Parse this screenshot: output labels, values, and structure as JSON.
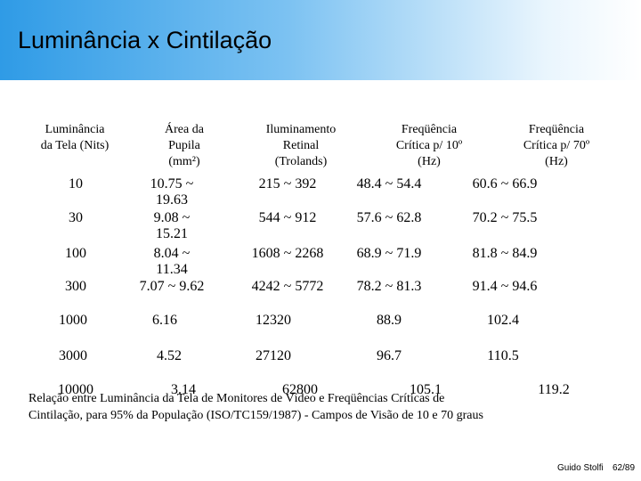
{
  "header": {
    "title": "Luminância x Cintilação"
  },
  "table": {
    "columns": [
      [
        "Luminância",
        "da Tela (Nits)"
      ],
      [
        "Área da",
        "Pupila",
        "(mm²)"
      ],
      [
        "Iluminamento",
        "Retinal",
        "(Trolands)"
      ],
      [
        "Freqüência",
        "Crítica p/ 10º",
        "(Hz)"
      ],
      [
        "Freqüência",
        "Crítica p/ 70º",
        "(Hz)"
      ]
    ],
    "rows": [
      [
        "10",
        "10.75 ~ 19.63",
        "215 ~ 392",
        "48.4 ~ 54.4",
        "60.6 ~ 66.9"
      ],
      [
        "30",
        "9.08 ~ 15.21",
        "544 ~ 912",
        "57.6 ~ 62.8",
        "70.2 ~ 75.5"
      ],
      [
        "100",
        "8.04 ~ 11.34",
        "1608 ~ 2268",
        "68.9 ~ 71.9",
        "81.8 ~ 84.9"
      ],
      [
        "300",
        "7.07 ~ 9.62",
        "4242 ~ 5772",
        "78.2 ~ 81.3",
        "91.4 ~ 94.6"
      ],
      [
        "1000",
        "6.16",
        "12320",
        "88.9",
        "102.4"
      ],
      [
        "3000",
        "4.52",
        "27120",
        "96.7",
        "110.5"
      ],
      [
        "10000",
        "3.14",
        "62800",
        "105.1",
        "119.2"
      ]
    ]
  },
  "caption": [
    "Relação entre Luminância da Tela de Monitores de Vídeo e Freqüências Críticas de",
    "Cintilação, para 95% da População (ISO/TC159/1987) - Campos de Visão de 10 e 70 graus"
  ],
  "footer": {
    "author": "Guido Stolfi",
    "page": "62/89"
  }
}
